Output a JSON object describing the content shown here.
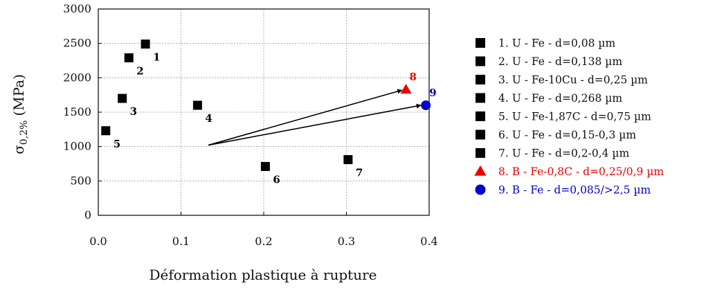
{
  "chart_data": {
    "type": "scatter",
    "xlabel": "Déformation plastique à rupture",
    "ylabel": "σ0,2% (MPa)",
    "ylabel_main": "σ",
    "ylabel_sub": "0,2%",
    "ylabel_unit": "(MPa)",
    "xlim": [
      0,
      0.4
    ],
    "ylim": [
      0,
      3000
    ],
    "x_ticks": [
      "0.0",
      "0.1",
      "0.2",
      "0.3",
      "0.4"
    ],
    "x_tick_values": [
      0,
      0.1,
      0.2,
      0.3,
      0.4
    ],
    "y_ticks": [
      "0",
      "500",
      "1000",
      "1500",
      "2000",
      "2500",
      "3000"
    ],
    "y_tick_values": [
      0,
      500,
      1000,
      1500,
      2000,
      2500,
      3000
    ],
    "grid": true,
    "legend_position": "right",
    "series": [
      {
        "name": "1. U - Fe - d=0,08 µm",
        "label": "1",
        "x": 0.057,
        "y": 2490,
        "marker": "square",
        "color": "#000000"
      },
      {
        "name": "2. U - Fe - d=0,138 µm",
        "label": "2",
        "x": 0.037,
        "y": 2290,
        "marker": "square",
        "color": "#000000"
      },
      {
        "name": "3. U - Fe-10Cu - d=0,25 µm",
        "label": "3",
        "x": 0.029,
        "y": 1700,
        "marker": "square",
        "color": "#000000"
      },
      {
        "name": "4. U - Fe - d=0,268 µm",
        "label": "4",
        "x": 0.12,
        "y": 1600,
        "marker": "square",
        "color": "#000000"
      },
      {
        "name": "5. U - Fe-1,87C - d=0,75 µm",
        "label": "5",
        "x": 0.009,
        "y": 1230,
        "marker": "square",
        "color": "#000000"
      },
      {
        "name": "6. U - Fe - d=0,15-0,3 µm",
        "label": "6",
        "x": 0.202,
        "y": 710,
        "marker": "square",
        "color": "#000000"
      },
      {
        "name": "7. U - Fe - d=0,2-0,4 µm",
        "label": "7",
        "x": 0.302,
        "y": 810,
        "marker": "square",
        "color": "#000000"
      },
      {
        "name": "8. B - Fe-0,8C - d=0,25/0,9 µm",
        "label": "8",
        "x": 0.372,
        "y": 1830,
        "marker": "triangle",
        "color": "#ee0000"
      },
      {
        "name": "9. B - Fe - d=0,085/>2,5 µm",
        "label": "9",
        "x": 0.396,
        "y": 1600,
        "marker": "circle",
        "color": "#0000cc"
      }
    ],
    "annotations": [
      {
        "type": "arrow",
        "from": [
          0.133,
          1020
        ],
        "to": [
          0.367,
          1820
        ]
      },
      {
        "type": "arrow",
        "from": [
          0.133,
          1020
        ],
        "to": [
          0.39,
          1600
        ]
      }
    ]
  }
}
